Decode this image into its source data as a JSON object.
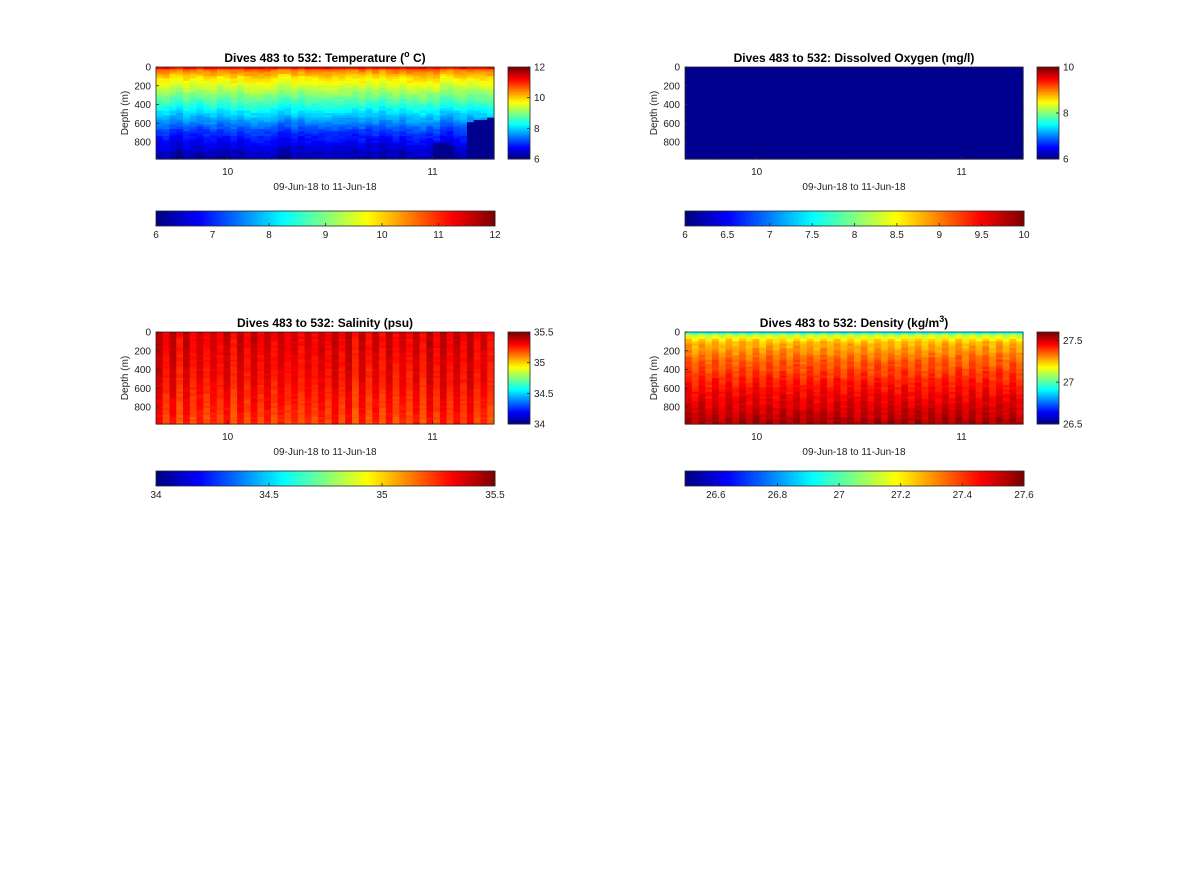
{
  "chart_data": [
    {
      "type": "heatmap",
      "variable": "temperature",
      "title": "Dives 483 to 532: Temperature (",
      "title_sup": "o",
      "title_tail": " C)",
      "xlabel": "09-Jun-18 to 11-Jun-18",
      "ylabel": "Depth (m)",
      "x_ticks": [
        "10",
        "11"
      ],
      "x_tick_values": [
        10,
        11
      ],
      "xlim": [
        9.65,
        11.3
      ],
      "y_ticks": [
        "0",
        "200",
        "400",
        "600",
        "800"
      ],
      "y_tick_values": [
        0,
        200,
        400,
        600,
        800
      ],
      "ylim": [
        0,
        980
      ],
      "clim": [
        6,
        12
      ],
      "side_colorbar_ticks": [
        "6",
        "8",
        "10",
        "12"
      ],
      "side_colorbar_values": [
        6,
        8,
        10,
        12
      ],
      "bottom_colorbar_ticks": [
        "6",
        "7",
        "8",
        "9",
        "10",
        "11",
        "12"
      ],
      "bottom_colorbar_values": [
        6,
        7,
        8,
        9,
        10,
        11,
        12
      ],
      "dive_count": 50,
      "profile_depths_m": [
        {
          "dive_index": 0,
          "depth": 0
        },
        {
          "dive_index": 40,
          "depth": 0
        },
        {
          "dive_index": 41,
          "depth": 820
        },
        {
          "dive_index": 42,
          "depth": 820
        },
        {
          "dive_index": 43,
          "depth": 840
        },
        {
          "dive_index": 44,
          "depth": 0
        },
        {
          "dive_index": 45,
          "depth": 0
        },
        {
          "dive_index": 46,
          "depth": 600
        },
        {
          "dive_index": 47,
          "depth": 570
        },
        {
          "dive_index": 48,
          "depth": 560
        },
        {
          "dive_index": 49,
          "depth": 550
        }
      ],
      "profile": [
        {
          "depth": 0,
          "value": 11.6
        },
        {
          "depth": 30,
          "value": 10.6
        },
        {
          "depth": 100,
          "value": 10.0
        },
        {
          "depth": 200,
          "value": 9.5
        },
        {
          "depth": 300,
          "value": 9.0
        },
        {
          "depth": 400,
          "value": 8.5
        },
        {
          "depth": 500,
          "value": 8.0
        },
        {
          "depth": 600,
          "value": 7.5
        },
        {
          "depth": 700,
          "value": 7.0
        },
        {
          "depth": 800,
          "value": 6.7
        },
        {
          "depth": 900,
          "value": 6.4
        },
        {
          "depth": 980,
          "value": 6.2
        }
      ],
      "no_data_color": "#00008f"
    },
    {
      "type": "heatmap",
      "variable": "oxygen",
      "title": "Dives 483 to 532: Dissolved Oxygen (mg/l)",
      "title_sup": "",
      "title_tail": "",
      "xlabel": "09-Jun-18 to 11-Jun-18",
      "ylabel": "Depth (m)",
      "x_ticks": [
        "10",
        "11"
      ],
      "x_tick_values": [
        10,
        11
      ],
      "xlim": [
        9.65,
        11.3
      ],
      "y_ticks": [
        "0",
        "200",
        "400",
        "600",
        "800"
      ],
      "y_tick_values": [
        0,
        200,
        400,
        600,
        800
      ],
      "ylim": [
        0,
        980
      ],
      "clim": [
        6,
        10
      ],
      "side_colorbar_ticks": [
        "6",
        "8",
        "10"
      ],
      "side_colorbar_values": [
        6,
        8,
        10
      ],
      "bottom_colorbar_ticks": [
        "6",
        "6.5",
        "7",
        "7.5",
        "8",
        "8.5",
        "9",
        "9.5",
        "10"
      ],
      "bottom_colorbar_values": [
        6,
        6.5,
        7,
        7.5,
        8,
        8.5,
        9,
        9.5,
        10
      ],
      "dive_count": 50,
      "uniform_value": 6,
      "no_data_color": "#00008f"
    },
    {
      "type": "heatmap",
      "variable": "salinity",
      "title": "Dives 483 to 532: Salinity (psu)",
      "title_sup": "",
      "title_tail": "",
      "xlabel": "09-Jun-18 to 11-Jun-18",
      "ylabel": "Depth (m)",
      "x_ticks": [
        "10",
        "11"
      ],
      "x_tick_values": [
        10,
        11
      ],
      "xlim": [
        9.65,
        11.3
      ],
      "y_ticks": [
        "0",
        "200",
        "400",
        "600",
        "800"
      ],
      "y_tick_values": [
        0,
        200,
        400,
        600,
        800
      ],
      "ylim": [
        0,
        980
      ],
      "clim": [
        34,
        35.5
      ],
      "side_colorbar_ticks": [
        "34",
        "34.5",
        "35",
        "35.5"
      ],
      "side_colorbar_values": [
        34,
        34.5,
        35,
        35.5
      ],
      "bottom_colorbar_ticks": [
        "34",
        "34.5",
        "35",
        "35.5"
      ],
      "bottom_colorbar_values": [
        34,
        34.5,
        35,
        35.5
      ],
      "dive_count": 50,
      "profile": [
        {
          "depth": 0,
          "value": 35.35
        },
        {
          "depth": 200,
          "value": 35.33
        },
        {
          "depth": 500,
          "value": 35.3
        },
        {
          "depth": 800,
          "value": 35.25
        },
        {
          "depth": 980,
          "value": 35.22
        }
      ],
      "no_data_color": "#00008f"
    },
    {
      "type": "heatmap",
      "variable": "density",
      "title": "Dives 483 to 532: Density (kg/m",
      "title_sup": "3",
      "title_tail": ")",
      "xlabel": "09-Jun-18 to 11-Jun-18",
      "ylabel": "Depth (m)",
      "x_ticks": [
        "10",
        "11"
      ],
      "x_tick_values": [
        10,
        11
      ],
      "xlim": [
        9.65,
        11.3
      ],
      "y_ticks": [
        "0",
        "200",
        "400",
        "600",
        "800"
      ],
      "y_tick_values": [
        0,
        200,
        400,
        600,
        800
      ],
      "ylim": [
        0,
        980
      ],
      "clim": [
        26.5,
        27.6
      ],
      "side_colorbar_ticks": [
        "26.5",
        "27",
        "27.5"
      ],
      "side_colorbar_values": [
        26.5,
        27,
        27.5
      ],
      "bottom_colorbar_ticks": [
        "26.6",
        "26.8",
        "27",
        "27.2",
        "27.4",
        "27.6"
      ],
      "bottom_colorbar_values": [
        26.6,
        26.8,
        27,
        27.2,
        27.4,
        27.6
      ],
      "dive_count": 50,
      "profile": [
        {
          "depth": 0,
          "value": 26.85
        },
        {
          "depth": 30,
          "value": 27.1
        },
        {
          "depth": 100,
          "value": 27.25
        },
        {
          "depth": 300,
          "value": 27.35
        },
        {
          "depth": 600,
          "value": 27.45
        },
        {
          "depth": 800,
          "value": 27.5
        },
        {
          "depth": 980,
          "value": 27.55
        }
      ],
      "no_data_color": "#00008f"
    }
  ]
}
